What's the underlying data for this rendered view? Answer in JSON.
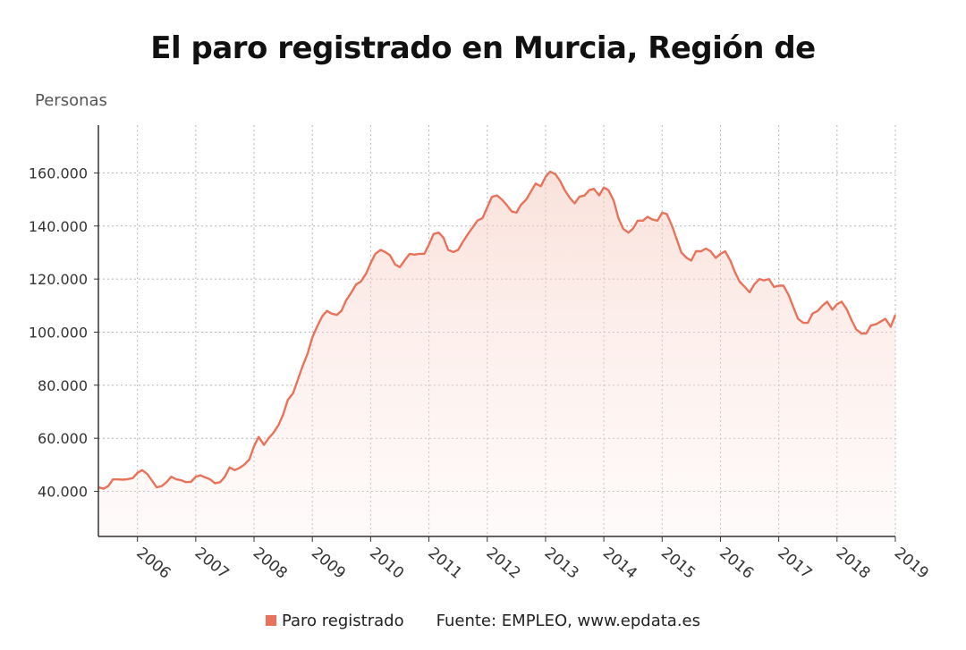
{
  "chart_data": {
    "type": "area",
    "title": "El paro registrado en Murcia, Región de",
    "ylabel": "Personas",
    "xlabel": "",
    "ylim": [
      23000,
      178000
    ],
    "yticks": [
      40000,
      60000,
      80000,
      100000,
      120000,
      140000,
      160000
    ],
    "ytick_labels": [
      "40.000",
      "60.000",
      "80.000",
      "100.000",
      "120.000",
      "140.000",
      "160.000"
    ],
    "xlim": [
      2005.33,
      2019.0
    ],
    "xticks": [
      2006,
      2007,
      2008,
      2009,
      2010,
      2011,
      2012,
      2013,
      2014,
      2015,
      2016,
      2017,
      2018,
      2019
    ],
    "xtick_labels": [
      "2006",
      "2007",
      "2008",
      "2009",
      "2010",
      "2011",
      "2012",
      "2013",
      "2014",
      "2015",
      "2016",
      "2017",
      "2018",
      "2019"
    ],
    "grid": true,
    "legend": "bottom",
    "series": [
      {
        "name": "Paro registrado",
        "color": "#e8735a",
        "points": [
          [
            2005.33,
            41500
          ],
          [
            2005.42,
            41000
          ],
          [
            2005.5,
            42000
          ],
          [
            2005.58,
            44500
          ],
          [
            2005.67,
            44500
          ],
          [
            2005.75,
            44400
          ],
          [
            2005.83,
            44600
          ],
          [
            2005.92,
            45000
          ],
          [
            2006.0,
            47000
          ],
          [
            2006.08,
            48000
          ],
          [
            2006.17,
            46500
          ],
          [
            2006.25,
            44000
          ],
          [
            2006.33,
            41500
          ],
          [
            2006.42,
            42000
          ],
          [
            2006.5,
            43500
          ],
          [
            2006.58,
            45500
          ],
          [
            2006.67,
            44500
          ],
          [
            2006.75,
            44200
          ],
          [
            2006.83,
            43500
          ],
          [
            2006.92,
            43600
          ],
          [
            2007.0,
            45500
          ],
          [
            2007.08,
            46000
          ],
          [
            2007.17,
            45200
          ],
          [
            2007.25,
            44500
          ],
          [
            2007.33,
            43000
          ],
          [
            2007.42,
            43500
          ],
          [
            2007.5,
            45500
          ],
          [
            2007.58,
            49000
          ],
          [
            2007.67,
            48000
          ],
          [
            2007.75,
            48800
          ],
          [
            2007.83,
            50000
          ],
          [
            2007.92,
            52000
          ],
          [
            2008.0,
            57000
          ],
          [
            2008.08,
            60500
          ],
          [
            2008.17,
            57500
          ],
          [
            2008.25,
            60000
          ],
          [
            2008.33,
            62000
          ],
          [
            2008.42,
            65000
          ],
          [
            2008.5,
            69000
          ],
          [
            2008.58,
            74500
          ],
          [
            2008.67,
            77000
          ],
          [
            2008.75,
            82000
          ],
          [
            2008.83,
            87000
          ],
          [
            2008.92,
            92000
          ],
          [
            2009.0,
            98000
          ],
          [
            2009.08,
            102000
          ],
          [
            2009.17,
            106000
          ],
          [
            2009.25,
            108000
          ],
          [
            2009.33,
            107000
          ],
          [
            2009.42,
            106500
          ],
          [
            2009.5,
            108000
          ],
          [
            2009.58,
            112000
          ],
          [
            2009.67,
            115000
          ],
          [
            2009.75,
            118000
          ],
          [
            2009.83,
            119000
          ],
          [
            2009.92,
            122000
          ],
          [
            2010.0,
            126000
          ],
          [
            2010.08,
            129500
          ],
          [
            2010.17,
            131000
          ],
          [
            2010.25,
            130200
          ],
          [
            2010.33,
            129000
          ],
          [
            2010.42,
            125500
          ],
          [
            2010.5,
            124500
          ],
          [
            2010.58,
            127000
          ],
          [
            2010.67,
            129500
          ],
          [
            2010.75,
            129200
          ],
          [
            2010.83,
            129500
          ],
          [
            2010.92,
            129500
          ],
          [
            2011.0,
            133000
          ],
          [
            2011.08,
            137000
          ],
          [
            2011.17,
            137500
          ],
          [
            2011.25,
            135500
          ],
          [
            2011.33,
            131000
          ],
          [
            2011.42,
            130200
          ],
          [
            2011.5,
            131000
          ],
          [
            2011.58,
            134000
          ],
          [
            2011.67,
            137000
          ],
          [
            2011.75,
            139500
          ],
          [
            2011.83,
            142000
          ],
          [
            2011.92,
            143000
          ],
          [
            2012.0,
            147000
          ],
          [
            2012.08,
            151000
          ],
          [
            2012.17,
            151500
          ],
          [
            2012.25,
            150000
          ],
          [
            2012.33,
            148000
          ],
          [
            2012.42,
            145500
          ],
          [
            2012.5,
            145000
          ],
          [
            2012.58,
            148000
          ],
          [
            2012.67,
            150000
          ],
          [
            2012.75,
            153000
          ],
          [
            2012.83,
            156000
          ],
          [
            2012.92,
            155000
          ],
          [
            2013.0,
            158500
          ],
          [
            2013.08,
            160500
          ],
          [
            2013.17,
            159500
          ],
          [
            2013.25,
            157000
          ],
          [
            2013.33,
            153500
          ],
          [
            2013.42,
            150500
          ],
          [
            2013.5,
            148500
          ],
          [
            2013.58,
            151000
          ],
          [
            2013.67,
            151500
          ],
          [
            2013.75,
            153500
          ],
          [
            2013.83,
            154000
          ],
          [
            2013.92,
            151500
          ],
          [
            2014.0,
            154500
          ],
          [
            2014.08,
            153500
          ],
          [
            2014.17,
            149500
          ],
          [
            2014.25,
            143000
          ],
          [
            2014.33,
            139000
          ],
          [
            2014.42,
            137500
          ],
          [
            2014.5,
            139000
          ],
          [
            2014.58,
            142000
          ],
          [
            2014.67,
            142000
          ],
          [
            2014.75,
            143500
          ],
          [
            2014.83,
            142500
          ],
          [
            2014.92,
            142000
          ],
          [
            2015.0,
            145000
          ],
          [
            2015.08,
            144500
          ],
          [
            2015.17,
            140000
          ],
          [
            2015.25,
            135000
          ],
          [
            2015.33,
            130000
          ],
          [
            2015.42,
            128000
          ],
          [
            2015.5,
            127000
          ],
          [
            2015.58,
            130500
          ],
          [
            2015.67,
            130500
          ],
          [
            2015.75,
            131500
          ],
          [
            2015.83,
            130500
          ],
          [
            2015.92,
            128000
          ],
          [
            2016.0,
            129500
          ],
          [
            2016.08,
            130500
          ],
          [
            2016.17,
            127000
          ],
          [
            2016.25,
            122500
          ],
          [
            2016.33,
            119000
          ],
          [
            2016.42,
            117000
          ],
          [
            2016.5,
            115000
          ],
          [
            2016.58,
            118000
          ],
          [
            2016.67,
            120000
          ],
          [
            2016.75,
            119500
          ],
          [
            2016.83,
            120000
          ],
          [
            2016.92,
            117000
          ],
          [
            2017.0,
            117500
          ],
          [
            2017.08,
            117500
          ],
          [
            2017.17,
            114000
          ],
          [
            2017.25,
            109500
          ],
          [
            2017.33,
            105000
          ],
          [
            2017.42,
            103500
          ],
          [
            2017.5,
            103500
          ],
          [
            2017.58,
            107000
          ],
          [
            2017.67,
            108000
          ],
          [
            2017.75,
            110000
          ],
          [
            2017.83,
            111500
          ],
          [
            2017.92,
            108500
          ],
          [
            2018.0,
            110500
          ],
          [
            2018.08,
            111500
          ],
          [
            2018.17,
            108500
          ],
          [
            2018.25,
            104500
          ],
          [
            2018.33,
            101000
          ],
          [
            2018.42,
            99500
          ],
          [
            2018.5,
            99500
          ],
          [
            2018.58,
            102500
          ],
          [
            2018.67,
            103000
          ],
          [
            2018.75,
            104000
          ],
          [
            2018.83,
            105000
          ],
          [
            2018.92,
            102000
          ],
          [
            2019.0,
            106500
          ]
        ]
      }
    ]
  },
  "footer": {
    "legend_label": "Paro registrado",
    "source": "Fuente: EMPLEO, www.epdata.es"
  }
}
